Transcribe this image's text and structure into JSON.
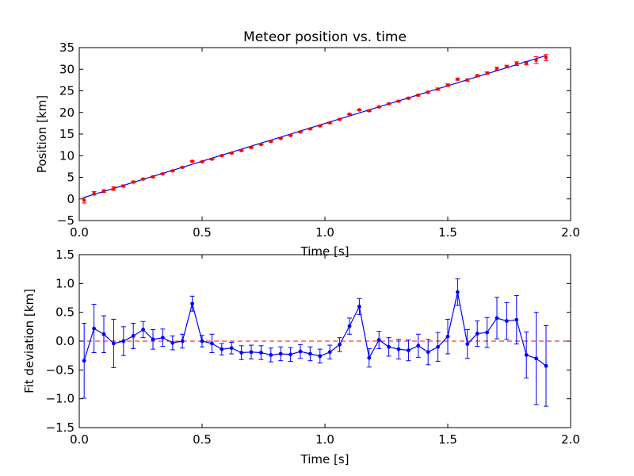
{
  "chart_data": [
    {
      "type": "scatter",
      "title": "Meteor position vs. time",
      "xlabel": "Time [s]",
      "ylabel": "Position [km]",
      "xlim": [
        0.0,
        2.0
      ],
      "ylim": [
        -5,
        35
      ],
      "xticks": [
        "0.0",
        "0.5",
        "1.0",
        "1.5",
        "2.0"
      ],
      "yticks": [
        "−5",
        "0",
        "5",
        "10",
        "15",
        "20",
        "25",
        "30",
        "35"
      ],
      "grid": false,
      "series": [
        {
          "kind": "points-with-errorbars",
          "color": "#ff0000",
          "x": [
            0.02,
            0.06,
            0.1,
            0.14,
            0.18,
            0.22,
            0.26,
            0.3,
            0.34,
            0.38,
            0.42,
            0.46,
            0.5,
            0.54,
            0.58,
            0.62,
            0.66,
            0.7,
            0.74,
            0.78,
            0.82,
            0.86,
            0.9,
            0.94,
            0.98,
            1.02,
            1.06,
            1.1,
            1.14,
            1.18,
            1.22,
            1.26,
            1.3,
            1.34,
            1.38,
            1.42,
            1.46,
            1.5,
            1.54,
            1.58,
            1.62,
            1.66,
            1.7,
            1.74,
            1.78,
            1.82,
            1.86,
            1.9
          ],
          "y": [
            -0.3,
            1.3,
            1.8,
            2.4,
            3.0,
            3.9,
            4.6,
            5.1,
            5.8,
            6.5,
            7.3,
            8.7,
            8.6,
            9.2,
            10.0,
            10.6,
            11.2,
            11.9,
            12.6,
            13.3,
            14.0,
            14.7,
            15.5,
            16.2,
            16.9,
            17.6,
            18.4,
            19.6,
            20.6,
            20.4,
            21.3,
            22.0,
            22.6,
            23.3,
            24.0,
            24.7,
            25.4,
            26.3,
            27.7,
            27.5,
            28.5,
            29.1,
            30.1,
            30.6,
            31.3,
            31.4,
            32.1,
            32.7
          ],
          "yerr": [
            0.65,
            0.42,
            0.32,
            0.42,
            0.25,
            0.22,
            0.14,
            0.17,
            0.15,
            0.12,
            0.12,
            0.13,
            0.1,
            0.16,
            0.1,
            0.1,
            0.12,
            0.12,
            0.12,
            0.12,
            0.12,
            0.12,
            0.12,
            0.12,
            0.12,
            0.12,
            0.12,
            0.14,
            0.14,
            0.16,
            0.15,
            0.16,
            0.17,
            0.18,
            0.2,
            0.22,
            0.25,
            0.3,
            0.23,
            0.25,
            0.22,
            0.26,
            0.36,
            0.32,
            0.42,
            0.4,
            0.8,
            0.7
          ]
        },
        {
          "kind": "fit-line",
          "color": "#0000ff",
          "x": [
            0.02,
            1.9
          ],
          "y": [
            0.35,
            33.15
          ]
        }
      ]
    },
    {
      "type": "line",
      "title": "",
      "xlabel": "Time [s]",
      "ylabel": "Fit deviation [km]",
      "xlim": [
        0.0,
        2.0
      ],
      "ylim": [
        -1.5,
        1.5
      ],
      "xticks": [
        "0.0",
        "0.5",
        "1.0",
        "1.5",
        "2.0"
      ],
      "yticks": [
        "−1.5",
        "−1.0",
        "−0.5",
        "0.0",
        "0.5",
        "1.0",
        "1.5"
      ],
      "grid": false,
      "reference_line": {
        "y": 0.0,
        "color": "#ff0000",
        "style": "dashed"
      },
      "series": [
        {
          "color": "#0000ff",
          "x": [
            0.02,
            0.06,
            0.1,
            0.14,
            0.18,
            0.22,
            0.26,
            0.3,
            0.34,
            0.38,
            0.42,
            0.46,
            0.5,
            0.54,
            0.58,
            0.62,
            0.66,
            0.7,
            0.74,
            0.78,
            0.82,
            0.86,
            0.9,
            0.94,
            0.98,
            1.02,
            1.06,
            1.1,
            1.14,
            1.18,
            1.22,
            1.26,
            1.3,
            1.34,
            1.38,
            1.42,
            1.46,
            1.5,
            1.54,
            1.58,
            1.62,
            1.66,
            1.7,
            1.74,
            1.78,
            1.82,
            1.86,
            1.9
          ],
          "y": [
            -0.34,
            0.22,
            0.12,
            -0.04,
            0.0,
            0.09,
            0.2,
            0.03,
            0.06,
            -0.03,
            0.0,
            0.65,
            0.0,
            -0.04,
            -0.14,
            -0.12,
            -0.2,
            -0.19,
            -0.2,
            -0.24,
            -0.22,
            -0.23,
            -0.18,
            -0.22,
            -0.26,
            -0.19,
            -0.06,
            0.26,
            0.6,
            -0.29,
            0.02,
            -0.1,
            -0.14,
            -0.16,
            -0.08,
            -0.19,
            -0.1,
            0.08,
            0.85,
            -0.05,
            0.13,
            0.15,
            0.4,
            0.35,
            0.37,
            -0.24,
            -0.3,
            -0.43
          ],
          "yerr": [
            0.65,
            0.42,
            0.32,
            0.42,
            0.25,
            0.22,
            0.14,
            0.17,
            0.15,
            0.12,
            0.12,
            0.13,
            0.1,
            0.16,
            0.1,
            0.1,
            0.12,
            0.12,
            0.12,
            0.12,
            0.12,
            0.12,
            0.12,
            0.12,
            0.12,
            0.12,
            0.12,
            0.14,
            0.14,
            0.16,
            0.15,
            0.16,
            0.17,
            0.18,
            0.2,
            0.22,
            0.25,
            0.3,
            0.23,
            0.25,
            0.22,
            0.26,
            0.36,
            0.32,
            0.42,
            0.4,
            0.8,
            0.7
          ]
        }
      ]
    }
  ]
}
